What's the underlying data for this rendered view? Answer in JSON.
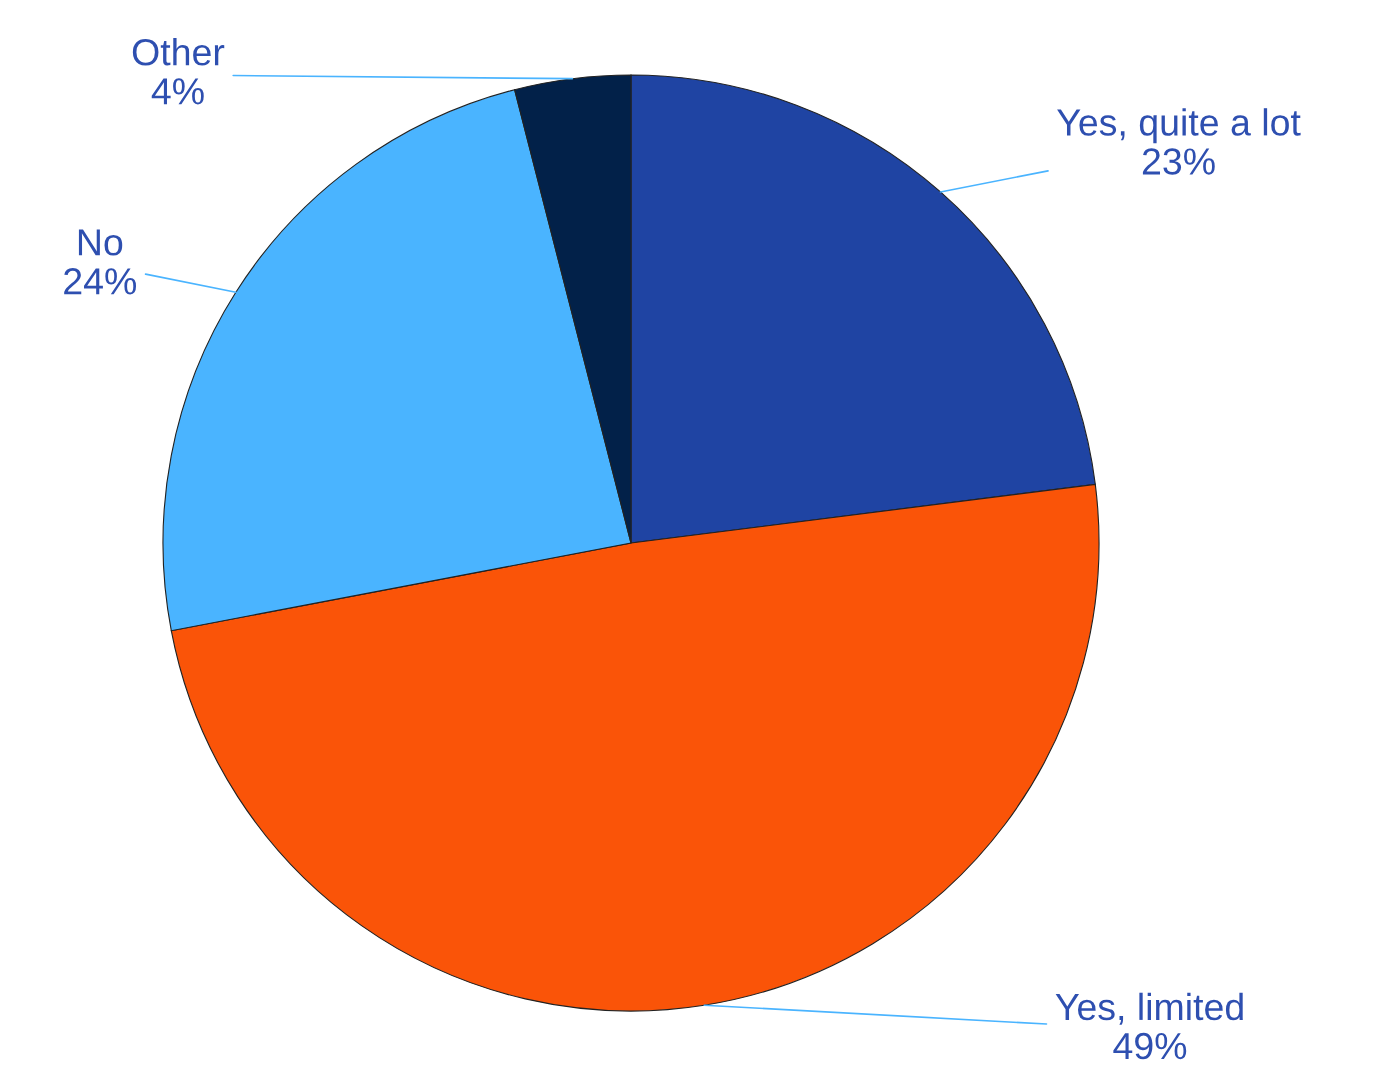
{
  "chart_data": {
    "type": "pie",
    "categories": [
      "Yes, quite a lot",
      "Yes, limited",
      "No",
      "Other"
    ],
    "values": [
      23,
      49,
      24,
      4
    ],
    "colors": [
      "#1f44a3",
      "#fa5408",
      "#4ab4ff",
      "#022149"
    ],
    "value_labels": [
      "23%",
      "49%",
      "24%",
      "4%"
    ]
  }
}
